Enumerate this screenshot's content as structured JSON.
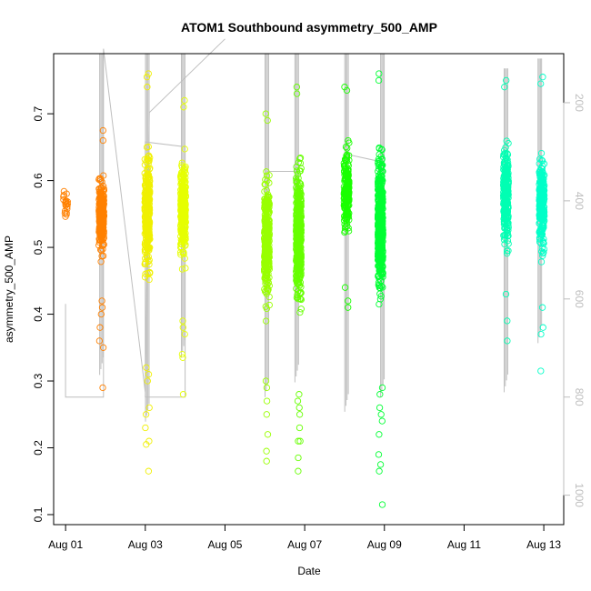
{
  "chart_data": {
    "type": "scatter",
    "title": "ATOM1 Southbound asymmetry_500_AMP",
    "xlabel": "Date",
    "ylabel": "asymmetry_500_AMP",
    "x_ticks": [
      "Aug 01",
      "Aug 03",
      "Aug 05",
      "Aug 07",
      "Aug 09",
      "Aug 11",
      "Aug 13"
    ],
    "x_tick_days": [
      1,
      3,
      5,
      7,
      9,
      11,
      13
    ],
    "y_ticks": [
      0.1,
      0.2,
      0.3,
      0.4,
      0.5,
      0.6,
      0.7
    ],
    "xlim_days": [
      0.7,
      13.5
    ],
    "ylim": [
      0.085,
      0.79
    ],
    "right_axis": {
      "ticks": [
        200,
        400,
        600,
        800,
        1000
      ],
      "range": [
        100,
        1060
      ],
      "color": "#bebebe",
      "label": ""
    },
    "grid": false,
    "legend": "none",
    "series": [
      {
        "day": 1.0,
        "color": "#ff8000",
        "stroke": "#c8c8c8",
        "y_range": [
          0.51,
          0.615
        ],
        "y_min": 0.51,
        "y_max": 0.615,
        "n": 20,
        "outliers_low": [],
        "outliers_high": []
      },
      {
        "day": 1.9,
        "color": "#ff8000",
        "stroke": "#c8c8c8",
        "y_range": [
          0.44,
          0.66
        ],
        "y_min": 0.29,
        "y_max": 0.675,
        "n": 260,
        "outliers_low": [
          0.29,
          0.35,
          0.36,
          0.38,
          0.4,
          0.41,
          0.42
        ],
        "outliers_high": [
          0.66,
          0.675
        ]
      },
      {
        "day": 3.05,
        "color": "#f0f000",
        "stroke": "#c8c8c8",
        "y_range": [
          0.37,
          0.73
        ],
        "y_min": 0.165,
        "y_max": 0.76,
        "n": 300,
        "outliers_low": [
          0.165,
          0.205,
          0.21,
          0.23,
          0.25,
          0.26,
          0.3,
          0.31,
          0.32
        ],
        "outliers_high": [
          0.74,
          0.755,
          0.76
        ]
      },
      {
        "day": 3.95,
        "color": "#e6ff00",
        "stroke": "#c8c8c8",
        "y_range": [
          0.42,
          0.7
        ],
        "y_min": 0.28,
        "y_max": 0.72,
        "n": 320,
        "outliers_low": [
          0.28,
          0.335,
          0.34,
          0.37,
          0.38,
          0.39
        ],
        "outliers_high": [
          0.71,
          0.72
        ]
      },
      {
        "day": 6.05,
        "color": "#99ff00",
        "stroke": "#c8c8c8",
        "y_range": [
          0.34,
          0.69
        ],
        "y_min": 0.18,
        "y_max": 0.7,
        "n": 340,
        "outliers_low": [
          0.18,
          0.195,
          0.22,
          0.25,
          0.27,
          0.29,
          0.3
        ],
        "outliers_high": [
          0.69,
          0.7
        ]
      },
      {
        "day": 6.85,
        "color": "#66ff00",
        "stroke": "#c8c8c8",
        "y_range": [
          0.32,
          0.72
        ],
        "y_min": 0.165,
        "y_max": 0.74,
        "n": 460,
        "outliers_low": [
          0.165,
          0.185,
          0.21,
          0.21,
          0.23,
          0.25,
          0.26,
          0.27,
          0.28
        ],
        "outliers_high": [
          0.73,
          0.74
        ]
      },
      {
        "day": 8.05,
        "color": "#1aff00",
        "stroke": "#c8c8c8",
        "y_range": [
          0.46,
          0.71
        ],
        "y_min": 0.41,
        "y_max": 0.74,
        "n": 200,
        "outliers_low": [
          0.41,
          0.42,
          0.44
        ],
        "outliers_high": [
          0.735,
          0.74
        ]
      },
      {
        "day": 8.9,
        "color": "#00ff33",
        "stroke": "#c8c8c8",
        "y_range": [
          0.33,
          0.74
        ],
        "y_min": 0.115,
        "y_max": 0.76,
        "n": 480,
        "outliers_low": [
          0.115,
          0.165,
          0.175,
          0.19,
          0.22,
          0.24,
          0.25,
          0.26,
          0.28,
          0.29
        ],
        "outliers_high": [
          0.75,
          0.76
        ]
      },
      {
        "day": 12.05,
        "color": "#00ffb3",
        "stroke": "#c8c8c8",
        "y_range": [
          0.44,
          0.72
        ],
        "y_min": 0.36,
        "y_max": 0.75,
        "n": 280,
        "outliers_low": [
          0.36,
          0.39,
          0.43
        ],
        "outliers_high": [
          0.74,
          0.75
        ]
      },
      {
        "day": 12.95,
        "color": "#00ffc8",
        "stroke": "#c8c8c8",
        "y_range": [
          0.42,
          0.71
        ],
        "y_min": 0.315,
        "y_max": 0.755,
        "n": 260,
        "outliers_low": [
          0.315,
          0.37,
          0.38,
          0.41
        ],
        "outliers_high": [
          0.745,
          0.755
        ]
      }
    ],
    "right_series": {
      "color": "#bebebe",
      "path": [
        [
          1.0,
          610
        ],
        [
          1.0,
          800
        ],
        [
          1.95,
          800
        ],
        [
          1.95,
          90
        ],
        [
          3.0,
          790
        ],
        [
          3.0,
          280
        ],
        [
          4.0,
          290
        ],
        [
          4.0,
          800
        ],
        [
          3.0,
          800
        ],
        [
          3.1,
          220
        ],
        [
          5.0,
          70
        ]
      ],
      "drops": [
        {
          "day": 1.9,
          "top": 90,
          "bottom": 755
        },
        {
          "day": 3.05,
          "top": 100,
          "bottom": 850
        },
        {
          "day": 3.95,
          "top": 90,
          "bottom": 720
        },
        {
          "day": 6.05,
          "top": 80,
          "bottom": 800
        },
        {
          "day": 6.8,
          "top": 70,
          "bottom": 770
        },
        {
          "day": 8.05,
          "top": 90,
          "bottom": 830
        },
        {
          "day": 8.95,
          "top": 100,
          "bottom": 800
        },
        {
          "day": 12.05,
          "top": 130,
          "bottom": 790
        },
        {
          "day": 12.9,
          "top": 110,
          "bottom": 690
        }
      ],
      "segments": [
        [
          [
            6.05,
            340
          ],
          [
            6.8,
            340
          ]
        ],
        [
          [
            8.05,
            305
          ],
          [
            8.9,
            320
          ]
        ]
      ]
    }
  }
}
